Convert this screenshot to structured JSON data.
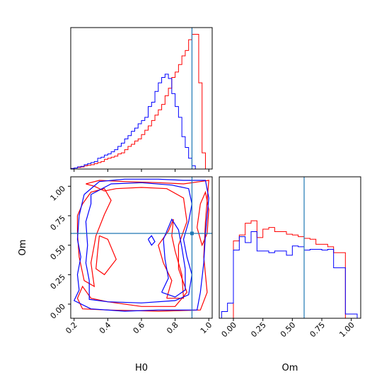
{
  "chart_data": {
    "type": "corner",
    "parameters": [
      "H0",
      "Om"
    ],
    "truth": {
      "H0": 0.9,
      "Om": 0.6
    },
    "colors": {
      "red": "#ff0000",
      "blue": "#0000ff",
      "truth": "#1f77b4"
    },
    "ranges": {
      "H0": [
        0.18,
        1.02
      ],
      "Om": [
        -0.12,
        1.08
      ]
    },
    "ticks": {
      "H0": [
        "0.2",
        "0.4",
        "0.6",
        "0.8",
        "1.0"
      ],
      "Om": [
        "0.00",
        "0.25",
        "0.50",
        "0.75",
        "1.00"
      ]
    },
    "hist_H0": {
      "bins": [
        0.18,
        0.2,
        0.22,
        0.24,
        0.26,
        0.28,
        0.3,
        0.32,
        0.34,
        0.36,
        0.38,
        0.4,
        0.42,
        0.44,
        0.46,
        0.48,
        0.5,
        0.52,
        0.54,
        0.56,
        0.58,
        0.6,
        0.62,
        0.64,
        0.66,
        0.68,
        0.7,
        0.72,
        0.74,
        0.76,
        0.78,
        0.8,
        0.82,
        0.84,
        0.86,
        0.88,
        0.9,
        0.92,
        0.94,
        0.96,
        0.98,
        1.0,
        1.02
      ],
      "red": [
        0.5,
        1,
        1.5,
        2,
        3,
        3.5,
        4,
        5,
        6,
        7,
        9,
        10,
        11,
        12,
        14,
        15,
        18,
        21,
        23,
        26,
        28,
        32,
        36,
        40,
        45,
        50,
        55,
        60,
        68,
        75,
        85,
        90,
        97,
        105,
        110,
        120,
        125,
        125,
        80,
        15,
        0,
        0
      ],
      "blue": [
        0.5,
        1,
        2,
        2.5,
        4,
        5,
        6,
        7,
        10,
        11,
        13,
        14,
        16,
        18,
        21,
        24,
        28,
        31,
        35,
        38,
        42,
        45,
        48,
        58,
        62,
        72,
        80,
        85,
        88,
        84,
        70,
        58,
        48,
        30,
        20,
        10,
        3,
        0,
        0,
        0,
        0,
        0
      ]
    },
    "hist_Om": {
      "bins": [
        -0.1,
        -0.05,
        0.0,
        0.05,
        0.1,
        0.15,
        0.2,
        0.25,
        0.3,
        0.35,
        0.4,
        0.45,
        0.5,
        0.55,
        0.6,
        0.65,
        0.7,
        0.75,
        0.8,
        0.85,
        0.9,
        0.95,
        1.0,
        1.05
      ],
      "red": [
        0,
        0,
        92,
        99,
        113,
        116,
        96,
        106,
        108,
        103,
        103,
        100,
        99,
        97,
        95,
        94,
        88,
        88,
        85,
        78,
        78,
        0,
        0
      ],
      "blue": [
        8,
        18,
        81,
        97,
        90,
        103,
        80,
        80,
        78,
        80,
        80,
        75,
        86,
        85,
        81,
        82,
        82,
        81,
        82,
        60,
        60,
        5,
        5
      ]
    },
    "contours": {
      "red": [
        [
          [
            0.22,
            0.75
          ],
          [
            0.25,
            0.85
          ],
          [
            0.3,
            0.95
          ],
          [
            0.38,
            0.98
          ],
          [
            0.42,
            0.88
          ],
          [
            0.38,
            0.76
          ],
          [
            0.33,
            0.58
          ],
          [
            0.3,
            0.35
          ],
          [
            0.32,
            0.15
          ],
          [
            0.26,
            0.2
          ],
          [
            0.23,
            0.4
          ],
          [
            0.22,
            0.6
          ],
          [
            0.22,
            0.75
          ]
        ],
        [
          [
            0.27,
            1.02
          ],
          [
            0.35,
            1.05
          ],
          [
            0.5,
            1.04
          ],
          [
            0.7,
            1.03
          ],
          [
            0.85,
            1.02
          ],
          [
            0.95,
            1.04
          ],
          [
            1.0,
            1.05
          ],
          [
            0.98,
            0.7
          ],
          [
            0.97,
            0.4
          ],
          [
            0.99,
            0.1
          ],
          [
            0.95,
            -0.05
          ],
          [
            0.7,
            -0.06
          ],
          [
            0.4,
            -0.05
          ],
          [
            0.25,
            -0.04
          ],
          [
            0.22,
            0.05
          ],
          [
            0.25,
            0.15
          ],
          [
            0.3,
            0.05
          ],
          [
            0.4,
            0.02
          ],
          [
            0.6,
            -0.02
          ],
          [
            0.8,
            -0.02
          ],
          [
            0.87,
            0.1
          ],
          [
            0.82,
            0.3
          ],
          [
            0.82,
            0.5
          ],
          [
            0.87,
            0.7
          ],
          [
            0.85,
            0.9
          ],
          [
            0.75,
            0.98
          ],
          [
            0.6,
            0.99
          ],
          [
            0.45,
            0.98
          ],
          [
            0.38,
            0.96
          ],
          [
            0.32,
            1.0
          ],
          [
            0.27,
            1.02
          ]
        ],
        [
          [
            0.75,
            0.05
          ],
          [
            0.78,
            0.2
          ],
          [
            0.73,
            0.35
          ],
          [
            0.7,
            0.5
          ],
          [
            0.76,
            0.62
          ],
          [
            0.79,
            0.72
          ],
          [
            0.78,
            0.58
          ],
          [
            0.8,
            0.45
          ],
          [
            0.84,
            0.25
          ],
          [
            0.85,
            0.05
          ],
          [
            0.75,
            0.05
          ]
        ],
        [
          [
            0.93,
            0.65
          ],
          [
            0.95,
            0.85
          ],
          [
            0.98,
            0.95
          ],
          [
            1.0,
            0.8
          ],
          [
            0.99,
            0.6
          ],
          [
            0.96,
            0.5
          ],
          [
            0.93,
            0.65
          ]
        ],
        [
          [
            0.35,
            0.58
          ],
          [
            0.4,
            0.55
          ],
          [
            0.45,
            0.38
          ],
          [
            0.38,
            0.25
          ],
          [
            0.33,
            0.3
          ],
          [
            0.34,
            0.45
          ],
          [
            0.35,
            0.58
          ]
        ]
      ],
      "blue": [
        [
          [
            0.26,
            0.93
          ],
          [
            0.35,
            1.04
          ],
          [
            0.5,
            1.06
          ],
          [
            0.7,
            1.06
          ],
          [
            0.85,
            1.05
          ],
          [
            0.98,
            1.05
          ],
          [
            1.0,
            0.9
          ],
          [
            0.98,
            0.6
          ],
          [
            0.97,
            0.35
          ],
          [
            0.95,
            0.1
          ],
          [
            0.93,
            -0.05
          ],
          [
            0.7,
            -0.05
          ],
          [
            0.5,
            -0.06
          ],
          [
            0.3,
            -0.04
          ],
          [
            0.2,
            0.03
          ],
          [
            0.23,
            0.12
          ],
          [
            0.22,
            0.25
          ],
          [
            0.24,
            0.4
          ],
          [
            0.22,
            0.55
          ],
          [
            0.23,
            0.75
          ],
          [
            0.26,
            0.93
          ]
        ],
        [
          [
            0.3,
            0.93
          ],
          [
            0.42,
            1.02
          ],
          [
            0.6,
            1.03
          ],
          [
            0.78,
            1.01
          ],
          [
            0.88,
            0.98
          ],
          [
            0.9,
            0.85
          ],
          [
            0.88,
            0.7
          ],
          [
            0.85,
            0.55
          ],
          [
            0.87,
            0.4
          ],
          [
            0.9,
            0.25
          ],
          [
            0.88,
            0.08
          ],
          [
            0.8,
            0.03
          ],
          [
            0.6,
            0.01
          ],
          [
            0.4,
            0.02
          ],
          [
            0.29,
            0.04
          ],
          [
            0.29,
            0.2
          ],
          [
            0.27,
            0.35
          ],
          [
            0.28,
            0.5
          ],
          [
            0.27,
            0.7
          ],
          [
            0.3,
            0.85
          ],
          [
            0.3,
            0.93
          ]
        ],
        [
          [
            0.72,
            0.1
          ],
          [
            0.76,
            0.22
          ],
          [
            0.74,
            0.38
          ],
          [
            0.73,
            0.55
          ],
          [
            0.78,
            0.72
          ],
          [
            0.82,
            0.63
          ],
          [
            0.84,
            0.48
          ],
          [
            0.86,
            0.3
          ],
          [
            0.86,
            0.12
          ],
          [
            0.8,
            0.06
          ],
          [
            0.72,
            0.1
          ]
        ],
        [
          [
            0.64,
            0.55
          ],
          [
            0.66,
            0.58
          ],
          [
            0.68,
            0.53
          ],
          [
            0.66,
            0.5
          ],
          [
            0.64,
            0.55
          ]
        ]
      ]
    }
  }
}
